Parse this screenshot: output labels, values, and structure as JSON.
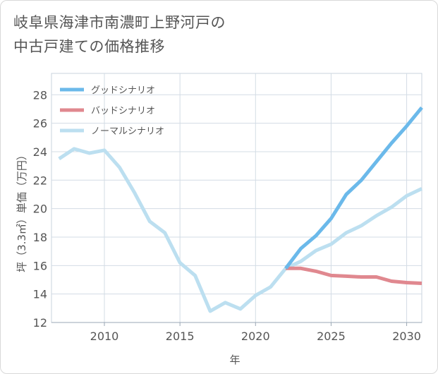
{
  "page": {
    "title_line1": "岐阜県海津市南濃町上野河戸の",
    "title_line2": "中古戸建ての価格推移"
  },
  "chart_data": {
    "type": "line",
    "title": "岐阜県海津市南濃町上野河戸の中古戸建ての価格推移",
    "xlabel": "年",
    "ylabel": "坪（3.3㎡）単価（万円）",
    "xlim": [
      2006.5,
      2031
    ],
    "ylim": [
      12,
      29.5
    ],
    "xticks": [
      2010,
      2015,
      2020,
      2025,
      2030
    ],
    "yticks": [
      12,
      14,
      16,
      18,
      20,
      22,
      24,
      26,
      28
    ],
    "grid": true,
    "legend_position": "top-left",
    "series": [
      {
        "name": "グッドシナリオ",
        "color": "#6bb9ea",
        "x": [
          2022,
          2023,
          2024,
          2025,
          2026,
          2027,
          2028,
          2029,
          2030,
          2031
        ],
        "y": [
          15.8,
          17.2,
          18.1,
          19.3,
          21.0,
          22.0,
          23.3,
          24.6,
          25.8,
          27.1
        ]
      },
      {
        "name": "バッドシナリオ",
        "color": "#e0888f",
        "x": [
          2022,
          2023,
          2024,
          2025,
          2026,
          2027,
          2028,
          2029,
          2030,
          2031
        ],
        "y": [
          15.8,
          15.8,
          15.6,
          15.3,
          15.25,
          15.2,
          15.2,
          14.9,
          14.8,
          14.75
        ]
      },
      {
        "name": "ノーマルシナリオ",
        "color": "#bcdff0",
        "x": [
          2007,
          2008,
          2009,
          2010,
          2011,
          2012,
          2013,
          2014,
          2015,
          2016,
          2017,
          2018,
          2019,
          2020,
          2021,
          2022,
          2023,
          2024,
          2025,
          2026,
          2027,
          2028,
          2029,
          2030,
          2031
        ],
        "y": [
          23.5,
          24.2,
          23.9,
          24.1,
          22.9,
          21.1,
          19.1,
          18.3,
          16.2,
          15.3,
          12.8,
          13.4,
          12.95,
          13.9,
          14.5,
          15.8,
          16.3,
          17.05,
          17.5,
          18.3,
          18.8,
          19.5,
          20.1,
          20.9,
          21.4
        ]
      }
    ]
  }
}
